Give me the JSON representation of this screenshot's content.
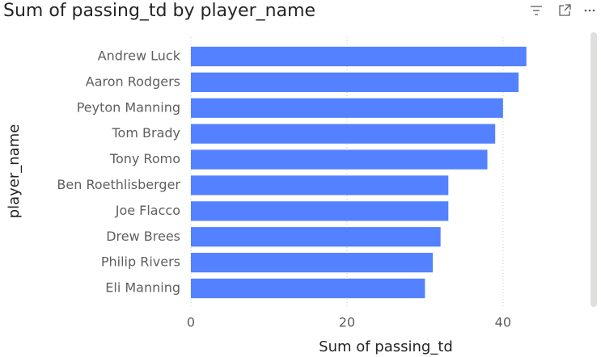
{
  "chart_data": {
    "type": "bar",
    "orientation": "horizontal",
    "title": "Sum of passing_td by player_name",
    "x_label": "Sum of passing_td",
    "y_label": "player_name",
    "categories": [
      "Andrew Luck",
      "Aaron Rodgers",
      "Peyton Manning",
      "Tom Brady",
      "Tony Romo",
      "Ben Roethlisberger",
      "Joe Flacco",
      "Drew Brees",
      "Philip Rivers",
      "Eli Manning"
    ],
    "values": [
      43,
      42,
      40,
      39,
      38,
      33,
      33,
      32,
      31,
      30
    ],
    "color": "#5381ff",
    "xlim": [
      0,
      48
    ],
    "xticks": [
      0,
      20,
      40
    ],
    "grid": true
  }
}
